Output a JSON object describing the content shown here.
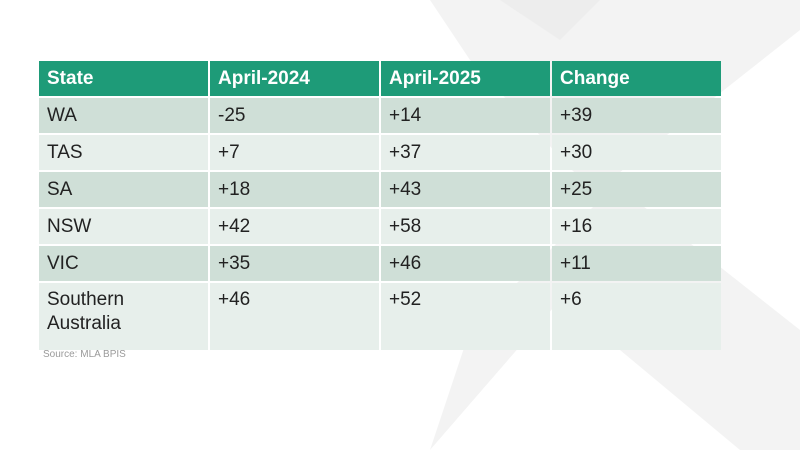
{
  "table": {
    "headers": [
      "State",
      "April-2024",
      "April-2025",
      "Change"
    ],
    "rows": [
      [
        "WA",
        "-25",
        "+14",
        "+39"
      ],
      [
        "TAS",
        "+7",
        "+37",
        "+30"
      ],
      [
        "SA",
        "+18",
        "+43",
        "+25"
      ],
      [
        "NSW",
        "+42",
        "+58",
        "+16"
      ],
      [
        "VIC",
        "+35",
        "+46",
        "+11"
      ],
      [
        "Southern Australia",
        "+46",
        "+52",
        "+6"
      ]
    ]
  },
  "source": "Source: MLA BPIS",
  "colors": {
    "header": "#1e9b78",
    "row_dark": "#cfdfd7",
    "row_light": "#e7efeb"
  }
}
